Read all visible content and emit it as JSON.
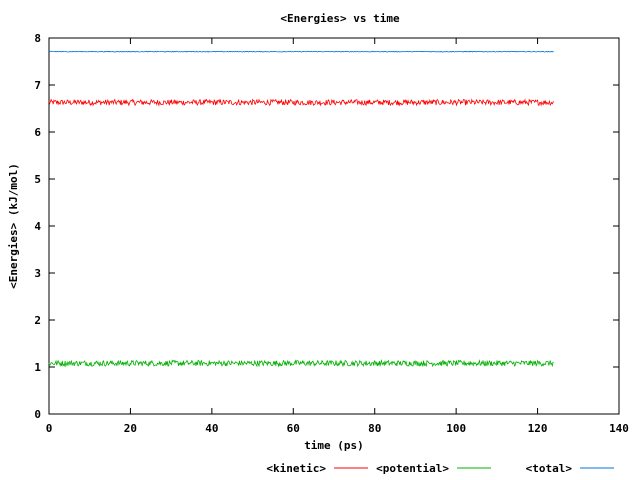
{
  "chart_data": {
    "type": "line",
    "title": "<Energies> vs time",
    "xlabel": "time (ps)",
    "ylabel": "<Energies> (kJ/mol)",
    "xlim": [
      0,
      140
    ],
    "ylim": [
      0,
      8
    ],
    "x_ticks": [
      0,
      20,
      40,
      60,
      80,
      100,
      120,
      140
    ],
    "y_ticks": [
      0,
      1,
      2,
      3,
      4,
      5,
      6,
      7,
      8
    ],
    "legend_position": "bottom-right",
    "grid": false,
    "x_range": [
      0,
      124
    ],
    "series": [
      {
        "name": "<kinetic>",
        "color": "#ff0000",
        "mean": 6.63,
        "noise": 0.06
      },
      {
        "name": "<potential>",
        "color": "#00b000",
        "mean": 1.08,
        "noise": 0.06
      },
      {
        "name": "<total>",
        "color": "#0070e0",
        "mean": 7.71,
        "noise": 0.008
      }
    ]
  }
}
